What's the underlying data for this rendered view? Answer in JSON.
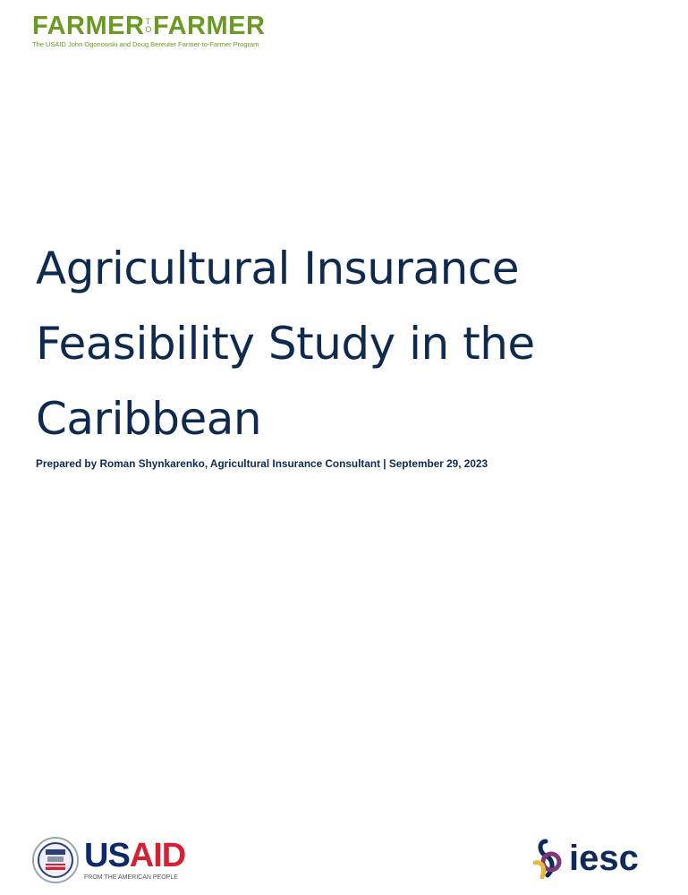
{
  "header_logo": {
    "left_word": "FARMER",
    "to_top": "T",
    "to_bottom": "O",
    "right_word": "FARMER",
    "subtitle": "The USAID John Ogonowski and Doug Bereuter Farmer-to-Farmer Program",
    "color": "#6a9a22"
  },
  "title_lines": [
    "Agricultural Insurance",
    "Feasibility Study in the",
    "Caribbean"
  ],
  "byline": "Prepared by Roman Shynkarenko, Agricultural Insurance Consultant | September 29, 2023",
  "footer": {
    "usaid": {
      "word_us": "US",
      "word_aid": "AID",
      "tagline": "FROM THE AMERICAN PEOPLE"
    },
    "iesc": {
      "word": "iesc"
    }
  },
  "colors": {
    "title": "#0e2a4e",
    "usaid_blue": "#0e2a6a",
    "usaid_red": "#d62035"
  }
}
